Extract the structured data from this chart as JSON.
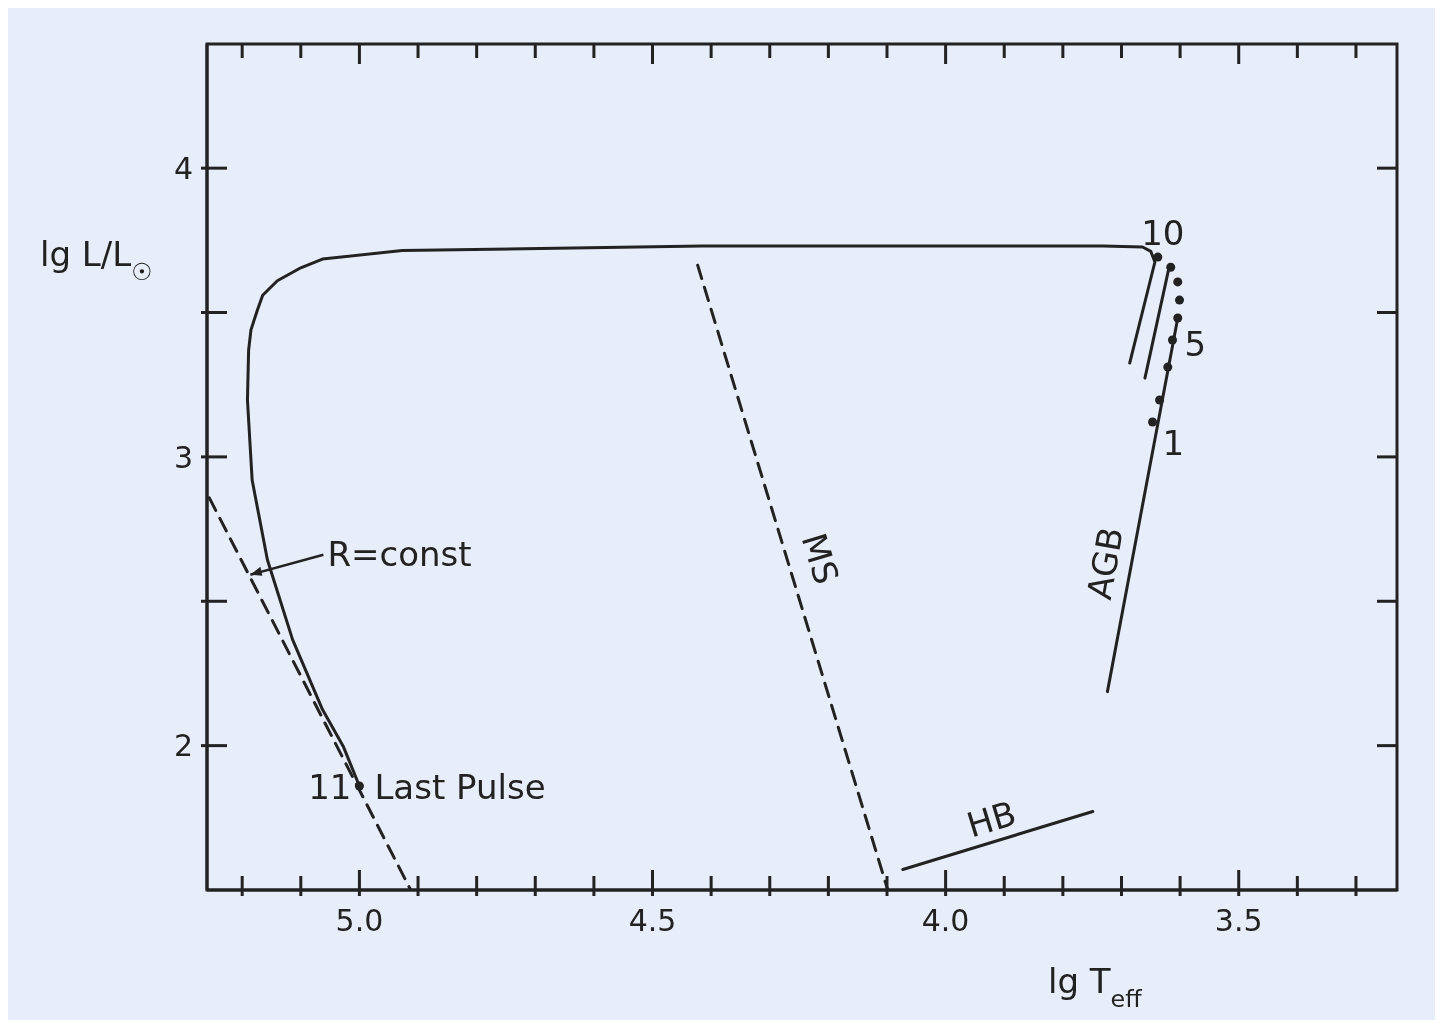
{
  "chart_data": {
    "type": "line",
    "xlabel": "lg T$_{eff}$",
    "ylabel": "lg L/L$_{☉}$",
    "xlim": [
      5.26,
      3.23
    ],
    "ylim": [
      1.5,
      4.43
    ],
    "xticks": [
      {
        "value": 5.2,
        "label": null
      },
      {
        "value": 5.1,
        "label": null
      },
      {
        "value": 5.0,
        "label": "5.0"
      },
      {
        "value": 4.9,
        "label": null
      },
      {
        "value": 4.8,
        "label": null
      },
      {
        "value": 4.7,
        "label": null
      },
      {
        "value": 4.6,
        "label": null
      },
      {
        "value": 4.5,
        "label": "4.5"
      },
      {
        "value": 4.4,
        "label": null
      },
      {
        "value": 4.3,
        "label": null
      },
      {
        "value": 4.2,
        "label": null
      },
      {
        "value": 4.1,
        "label": null
      },
      {
        "value": 4.0,
        "label": "4.0"
      },
      {
        "value": 3.9,
        "label": null
      },
      {
        "value": 3.8,
        "label": null
      },
      {
        "value": 3.7,
        "label": null
      },
      {
        "value": 3.6,
        "label": null
      },
      {
        "value": 3.5,
        "label": "3.5"
      },
      {
        "value": 3.4,
        "label": null
      },
      {
        "value": 3.3,
        "label": null
      }
    ],
    "yticks": [
      2,
      {
        "value": 2.5,
        "label": null
      },
      3,
      {
        "value": 3.5,
        "label": null
      },
      4
    ],
    "series": [
      {
        "color": "#222222",
        "line_style": "solid",
        "marker": "none",
        "x": [
          3.686,
          3.643,
          3.65,
          3.664,
          3.732,
          4.415,
          4.927,
          5.063,
          5.1,
          5.14,
          5.165,
          5.174,
          5.185,
          5.189,
          5.191,
          5.183,
          5.157,
          5.114,
          5.063,
          5.027,
          5.0
        ],
        "values": [
          3.325,
          3.675,
          3.712,
          3.727,
          3.73,
          3.73,
          3.715,
          3.685,
          3.655,
          3.61,
          3.56,
          3.509,
          3.44,
          3.37,
          3.197,
          2.92,
          2.644,
          2.367,
          2.125,
          1.995,
          1.86
        ]
      },
      {
        "color": "#222222",
        "line_style": "solid",
        "marker": "none",
        "x": [
          3.66,
          3.618
        ],
        "values": [
          3.273,
          3.664
        ]
      },
      {
        "color": "#222222",
        "line_style": "solid",
        "marker": "none",
        "x": [
          3.724,
          3.604
        ],
        "values": [
          2.187,
          3.481
        ]
      },
      {
        "color": "#222222",
        "line_style": "solid",
        "marker": "none",
        "x": [
          4.073,
          3.749
        ],
        "values": [
          1.571,
          1.772
        ]
      },
      {
        "color": "#222222",
        "line_style": "dashed",
        "marker": "none",
        "x": [
          5.256,
          4.913
        ],
        "values": [
          2.858,
          1.502
        ]
      },
      {
        "color": "#222222",
        "line_style": "dashed",
        "marker": "none",
        "x": [
          4.423,
          4.099
        ],
        "values": [
          3.664,
          1.502
        ]
      },
      {
        "type": "scatter",
        "color": "#222222",
        "marker": "circle",
        "x": [
          3.647,
          3.635,
          3.621,
          3.613,
          3.604,
          3.601,
          3.604,
          3.616,
          3.638,
          5.0
        ],
        "values": [
          3.121,
          3.197,
          3.311,
          3.405,
          3.481,
          3.543,
          3.606,
          3.657,
          3.692,
          1.86
        ]
      }
    ],
    "annotations": [
      {
        "text": "R=const",
        "x": 5.186,
        "y": 2.592
      },
      {
        "text": "11",
        "x": 5.0,
        "y": 1.86
      },
      {
        "text": "Last Pulse",
        "x": 5.0,
        "y": 1.86
      },
      {
        "text": "MS",
        "x": 4.264,
        "y": 2.6
      },
      {
        "text": "HB",
        "x": 3.9,
        "y": 1.678
      },
      {
        "text": "AGB",
        "x": 3.683,
        "y": 2.63
      },
      {
        "text": "10",
        "x": 3.638,
        "y": 3.692
      },
      {
        "text": "5",
        "x": 3.613,
        "y": 3.405
      },
      {
        "text": "1",
        "x": 3.647,
        "y": 3.121
      }
    ]
  }
}
